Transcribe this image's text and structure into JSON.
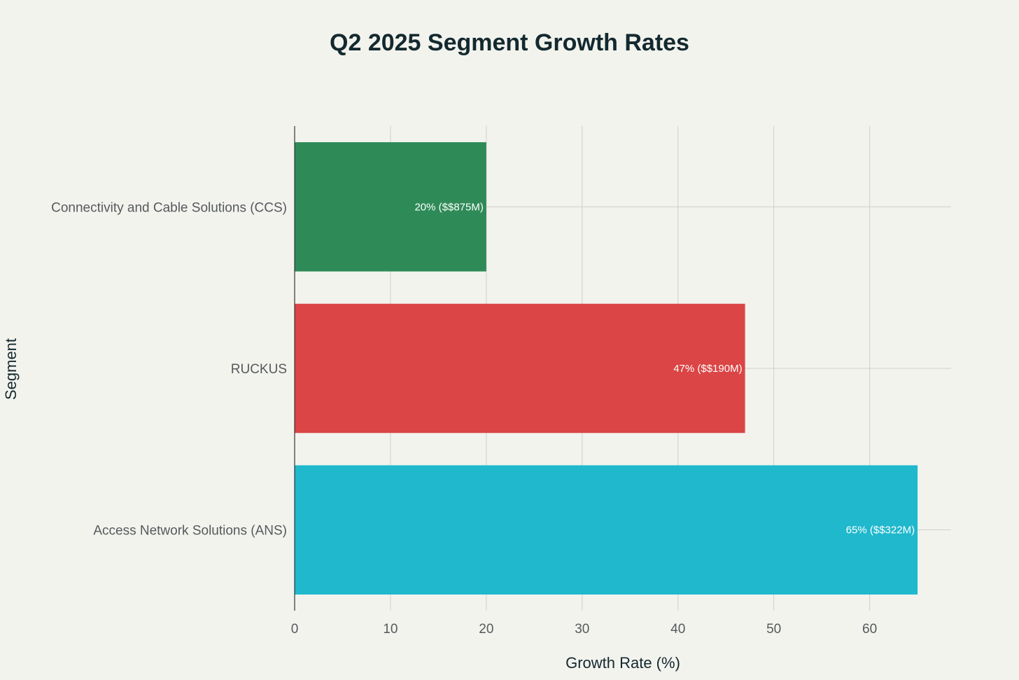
{
  "chart_data": {
    "type": "bar",
    "orientation": "horizontal",
    "title": "Q2 2025 Segment Growth Rates",
    "xlabel": "Growth Rate (%)",
    "ylabel": "Segment",
    "xlim": [
      0,
      68.5
    ],
    "xticks": [
      0,
      10,
      20,
      30,
      40,
      50,
      60
    ],
    "grid": true,
    "categories": [
      "Connectivity and Cable Solutions (CCS)",
      "RUCKUS",
      "Access Network Solutions (ANS)"
    ],
    "values": [
      20,
      47,
      65
    ],
    "data_labels": [
      "20% ($$875M)",
      "47% ($$190M)",
      "65% ($$322M)"
    ],
    "colors": [
      "#2e8b57",
      "#db4545",
      "#1fb8cd"
    ]
  },
  "style": {
    "background": "#f3f3ee",
    "text_color": "#13292f",
    "tick_color": "#555a5c",
    "grid_color": "#cfd0c8",
    "axis_color": "#333333"
  }
}
